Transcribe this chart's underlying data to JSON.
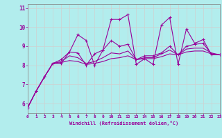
{
  "title": "",
  "xlabel": "Windchill (Refroidissement éolien,°C)",
  "ylabel": "",
  "bg_color": "#b2eded",
  "grid_color": "#d0d0d0",
  "line_color": "#990099",
  "x_min": 0,
  "x_max": 23,
  "y_min": 5.5,
  "y_max": 11.2,
  "x_ticks": [
    0,
    1,
    2,
    3,
    4,
    5,
    6,
    7,
    8,
    9,
    10,
    11,
    12,
    13,
    14,
    15,
    16,
    17,
    18,
    19,
    20,
    21,
    22,
    23
  ],
  "y_ticks": [
    6,
    7,
    8,
    9,
    10,
    11
  ],
  "series": [
    [
      5.8,
      6.65,
      7.4,
      8.1,
      8.1,
      8.7,
      9.6,
      9.3,
      8.0,
      8.8,
      10.4,
      10.4,
      10.65,
      8.05,
      8.35,
      8.05,
      10.1,
      10.5,
      8.05,
      9.9,
      9.15,
      9.35,
      8.55,
      8.55
    ],
    [
      5.8,
      6.65,
      7.4,
      8.1,
      8.3,
      8.7,
      8.65,
      8.0,
      8.6,
      8.8,
      9.3,
      9.0,
      9.1,
      8.3,
      8.5,
      8.5,
      8.65,
      9.0,
      8.55,
      9.0,
      9.1,
      9.15,
      8.6,
      8.55
    ],
    [
      5.8,
      6.65,
      7.4,
      8.1,
      8.2,
      8.5,
      8.4,
      8.1,
      8.2,
      8.4,
      8.65,
      8.6,
      8.75,
      8.3,
      8.4,
      8.4,
      8.6,
      8.8,
      8.55,
      8.85,
      8.9,
      8.9,
      8.65,
      8.55
    ],
    [
      5.8,
      6.65,
      7.4,
      8.1,
      8.15,
      8.25,
      8.2,
      8.05,
      8.1,
      8.2,
      8.35,
      8.4,
      8.5,
      8.3,
      8.35,
      8.35,
      8.45,
      8.6,
      8.55,
      8.7,
      8.75,
      8.75,
      8.6,
      8.55
    ]
  ]
}
